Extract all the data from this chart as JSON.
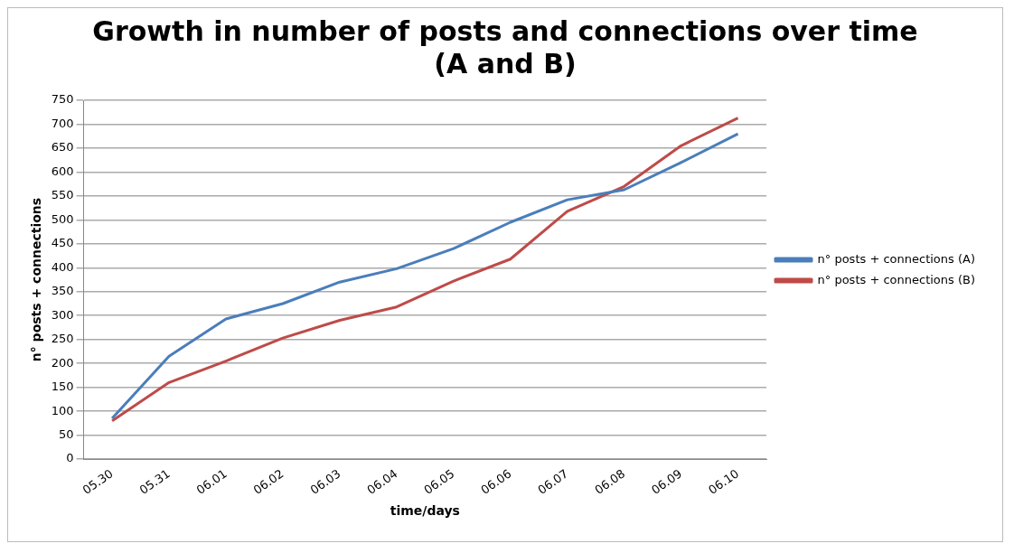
{
  "chart_data": {
    "type": "line",
    "title": [
      "Growth in number of posts and connections over time",
      "(A and B)"
    ],
    "xlabel": "time/days",
    "ylabel": "n° posts + connections",
    "categories": [
      "05.30",
      "05.31",
      "06.01",
      "06.02",
      "06.03",
      "06.04",
      "06.05",
      "06.06",
      "06.07",
      "06.08",
      "06.09",
      "06.10"
    ],
    "series": [
      {
        "name": "n° posts + connections (A)",
        "color": "#4a7ebb",
        "values": [
          85,
          215,
          293,
          325,
          370,
          398,
          440,
          495,
          542,
          563,
          620,
          680
        ]
      },
      {
        "name": "n° posts + connections (B)",
        "color": "#be4b48",
        "values": [
          80,
          160,
          205,
          253,
          290,
          318,
          372,
          418,
          518,
          570,
          655,
          713
        ]
      }
    ],
    "ylim": [
      0,
      750
    ],
    "yticks": [
      0,
      50,
      100,
      150,
      200,
      250,
      300,
      350,
      400,
      450,
      500,
      550,
      600,
      650,
      700,
      750
    ],
    "grid": "y",
    "legend": "right",
    "marker": "none",
    "line_style": "solid"
  }
}
